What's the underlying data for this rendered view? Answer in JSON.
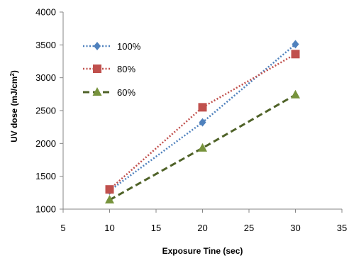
{
  "chart_data": {
    "type": "line",
    "title": "",
    "xlabel": "Exposure Tine (sec)",
    "ylabel": {
      "main": "UV dose (mJ/cm",
      "sup": "2",
      "close": ")"
    },
    "xlim": [
      5,
      35
    ],
    "ylim": [
      1000,
      4000
    ],
    "xticks": [
      "5",
      "10",
      "15",
      "20",
      "25",
      "30",
      "35"
    ],
    "yticks": [
      "1000",
      "1500",
      "2000",
      "2500",
      "3000",
      "3500",
      "4000"
    ],
    "grid": false,
    "legend_position": "top-left",
    "x": [
      10,
      20,
      30
    ],
    "series": [
      {
        "name": "100%",
        "values": [
          1280,
          2320,
          3510
        ],
        "color": "#4f81bd",
        "marker": "diamond",
        "line_style": "dotted"
      },
      {
        "name": "80%",
        "values": [
          1300,
          2550,
          3360
        ],
        "color": "#c0504d",
        "marker": "square",
        "line_style": "dotted"
      },
      {
        "name": "60%",
        "values": [
          1140,
          1930,
          2740
        ],
        "color": "#4f6228",
        "marker": "triangle",
        "marker_color": "#77933c",
        "line_style": "dashed"
      }
    ]
  }
}
